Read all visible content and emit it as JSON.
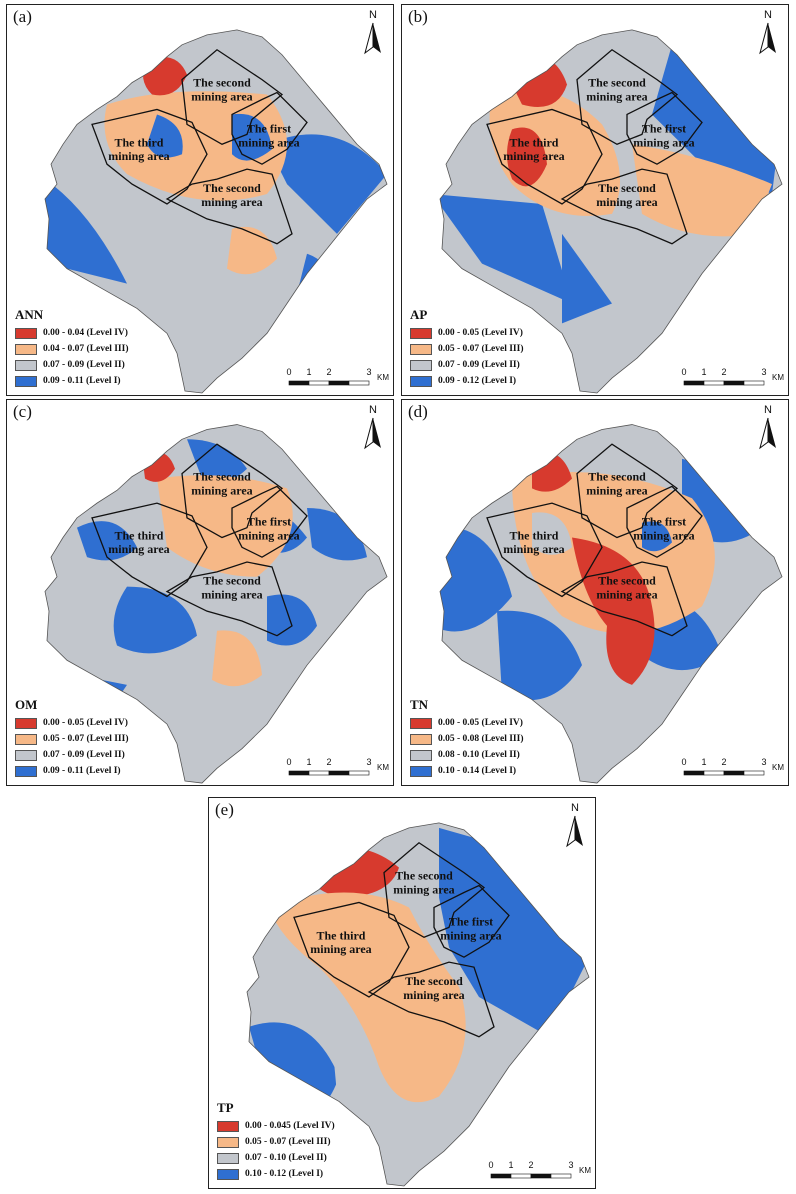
{
  "colors": {
    "level4": "#d73a2e",
    "level3": "#f6b887",
    "level2": "#c2c6cc",
    "level1": "#2f6fd1"
  },
  "north_label": "N",
  "area_labels": {
    "second_top_1": "The second",
    "second_top_2": "mining area",
    "first_1": "The first",
    "first_2": "mining area",
    "third_1": "The third",
    "third_2": "mining area",
    "second_bottom_1": "The second",
    "second_bottom_2": "mining area"
  },
  "scale": {
    "t0": "0",
    "t1": "1",
    "t2": "2",
    "t3": "3",
    "unit": "KM"
  },
  "panels": [
    {
      "id": "a",
      "label": "(a)",
      "title": "ANN",
      "legend": [
        "0.00 - 0.04 (Level IV)",
        "0.04 - 0.07 (Level III)",
        "0.07 - 0.09 (Level II)",
        "0.09 - 0.11 (Level I)"
      ]
    },
    {
      "id": "b",
      "label": "(b)",
      "title": "AP",
      "legend": [
        "0.00 - 0.05 (Level IV)",
        "0.05 - 0.07 (Level III)",
        "0.07 - 0.09 (Level II)",
        "0.09 - 0.12 (Level I)"
      ]
    },
    {
      "id": "c",
      "label": "(c)",
      "title": "OM",
      "legend": [
        "0.00 - 0.05 (Level IV)",
        "0.05 - 0.07 (Level III)",
        "0.07 - 0.09 (Level II)",
        "0.09 - 0.11 (Level I)"
      ]
    },
    {
      "id": "d",
      "label": "(d)",
      "title": "TN",
      "legend": [
        "0.00 - 0.05 (Level IV)",
        "0.05 - 0.08 (Level III)",
        "0.08 - 0.10 (Level II)",
        "0.10 - 0.14 (Level I)"
      ]
    },
    {
      "id": "e",
      "label": "(e)",
      "title": "TP",
      "legend": [
        "0.00 - 0.045 (Level IV)",
        "0.05 - 0.07 (Level III)",
        "0.07 - 0.10 (Level II)",
        "0.10 - 0.12 (Level I)"
      ]
    }
  ]
}
